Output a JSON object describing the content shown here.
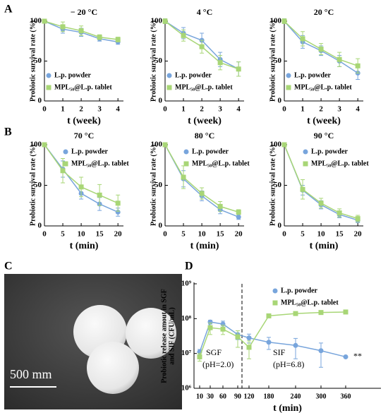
{
  "panel_labels": [
    "A",
    "B",
    "C",
    "D"
  ],
  "photo": {
    "scale_label": "500 mm"
  },
  "chart_data": [
    {
      "type": "line",
      "title": "− 20 °C",
      "x_label": "t (week)",
      "y_label": "Probiotic survival rate (%)",
      "x": [
        0,
        1,
        2,
        3,
        4
      ],
      "xlim": [
        0,
        4.3
      ],
      "xticks": [
        0,
        1,
        2,
        3,
        4
      ],
      "ylim": [
        0,
        100
      ],
      "yticks": [
        0,
        50,
        100
      ],
      "legend": "lower left",
      "series": [
        {
          "name": "L.p. powder",
          "color": "#78a5dc",
          "marker": "circle",
          "values": [
            100,
            90,
            86,
            78,
            74
          ],
          "errors": [
            2,
            5,
            5,
            3,
            3
          ]
        },
        {
          "name": "MPL₅₀@L.p. tablet",
          "color": "#a8d676",
          "marker": "square",
          "values": [
            100,
            93,
            88,
            80,
            77
          ],
          "errors": [
            2,
            6,
            6,
            3,
            3
          ]
        }
      ]
    },
    {
      "type": "line",
      "title": "4 °C",
      "x_label": "t (week)",
      "y_label": "Probiotic survival rate (%)",
      "x": [
        0,
        1,
        2,
        3,
        4
      ],
      "xlim": [
        0,
        4.3
      ],
      "xticks": [
        0,
        1,
        2,
        3,
        4
      ],
      "ylim": [
        0,
        100
      ],
      "yticks": [
        0,
        50,
        100
      ],
      "legend": "lower left",
      "series": [
        {
          "name": "L.p. powder",
          "color": "#78a5dc",
          "marker": "circle",
          "values": [
            100,
            85,
            76,
            52,
            40
          ],
          "errors": [
            3,
            7,
            9,
            9,
            9
          ]
        },
        {
          "name": "MPL₅₀@L.p. tablet",
          "color": "#a8d676",
          "marker": "square",
          "values": [
            100,
            82,
            68,
            48,
            40
          ],
          "errors": [
            3,
            7,
            8,
            9,
            9
          ]
        }
      ]
    },
    {
      "type": "line",
      "title": "20 °C",
      "x_label": "t (week)",
      "y_label": "Probiotic survival rate (%)",
      "x": [
        0,
        1,
        2,
        3,
        4
      ],
      "xlim": [
        0,
        4.3
      ],
      "xticks": [
        0,
        1,
        2,
        3,
        4
      ],
      "ylim": [
        0,
        100
      ],
      "yticks": [
        0,
        50,
        100
      ],
      "legend": "lower left",
      "series": [
        {
          "name": "L.p. powder",
          "color": "#78a5dc",
          "marker": "circle",
          "values": [
            100,
            74,
            63,
            50,
            35
          ],
          "errors": [
            3,
            8,
            6,
            7,
            8
          ]
        },
        {
          "name": "MPL₅₀@L.p. tablet",
          "color": "#a8d676",
          "marker": "square",
          "values": [
            100,
            78,
            65,
            52,
            44
          ],
          "errors": [
            3,
            9,
            7,
            9,
            9
          ]
        }
      ]
    },
    {
      "type": "line",
      "title": "70 °C",
      "x_label": "t (min)",
      "y_label": "Probiotic survival rate (%)",
      "x": [
        0,
        5,
        10,
        15,
        20
      ],
      "xlim": [
        0,
        21.5
      ],
      "xticks": [
        0,
        5,
        10,
        15,
        20
      ],
      "ylim": [
        0,
        100
      ],
      "yticks": [
        0,
        50,
        100
      ],
      "legend": "upper right",
      "series": [
        {
          "name": "L.p. powder",
          "color": "#78a5dc",
          "marker": "circle",
          "values": [
            100,
            70,
            40,
            27,
            17
          ],
          "errors": [
            2,
            10,
            7,
            8,
            5
          ]
        },
        {
          "name": "MPL₅₀@L.p. tablet",
          "color": "#a8d676",
          "marker": "square",
          "values": [
            100,
            68,
            48,
            38,
            28
          ],
          "errors": [
            2,
            15,
            12,
            13,
            10
          ]
        }
      ]
    },
    {
      "type": "line",
      "title": "80 °C",
      "x_label": "t (min)",
      "y_label": "Probiotic survival rate (%)",
      "x": [
        0,
        5,
        10,
        15,
        20
      ],
      "xlim": [
        0,
        21.5
      ],
      "xticks": [
        0,
        5,
        10,
        15,
        20
      ],
      "ylim": [
        0,
        100
      ],
      "yticks": [
        0,
        50,
        100
      ],
      "legend": "upper right",
      "series": [
        {
          "name": "L.p. powder",
          "color": "#78a5dc",
          "marker": "circle",
          "values": [
            100,
            58,
            37,
            20,
            11
          ],
          "errors": [
            2,
            10,
            6,
            5,
            3
          ]
        },
        {
          "name": "MPL₅₀@L.p. tablet",
          "color": "#a8d676",
          "marker": "square",
          "values": [
            100,
            60,
            40,
            24,
            17
          ],
          "errors": [
            2,
            14,
            7,
            6,
            3
          ]
        }
      ]
    },
    {
      "type": "line",
      "title": "90 °C",
      "x_label": "t (min)",
      "y_label": "Probiotic survival rate (%)",
      "x": [
        0,
        5,
        10,
        15,
        20
      ],
      "xlim": [
        0,
        21.5
      ],
      "xticks": [
        0,
        5,
        10,
        15,
        20
      ],
      "ylim": [
        0,
        100
      ],
      "yticks": [
        0,
        50,
        100
      ],
      "legend": "upper right",
      "series": [
        {
          "name": "L.p. powder",
          "color": "#78a5dc",
          "marker": "circle",
          "values": [
            100,
            44,
            26,
            14,
            7
          ],
          "errors": [
            2,
            6,
            5,
            4,
            3
          ]
        },
        {
          "name": "MPL₅₀@L.p. tablet",
          "color": "#a8d676",
          "marker": "square",
          "values": [
            100,
            45,
            28,
            16,
            9
          ],
          "errors": [
            2,
            12,
            6,
            5,
            4
          ]
        }
      ]
    },
    {
      "type": "line",
      "x_label": "t (min)",
      "y_label": [
        "Probiotic release amout in SGF",
        "and SIF (CFU/mL)"
      ],
      "categories": [
        "10",
        "30",
        "60",
        "90",
        "120",
        "180",
        "240",
        "300",
        "360"
      ],
      "log_y": true,
      "ylim": [
        1000000,
        1000000000
      ],
      "yticks": [
        {
          "value": 1000000,
          "label": "10⁶"
        },
        {
          "value": 10000000,
          "label": "10⁷"
        },
        {
          "value": 100000000,
          "label": "10⁸"
        },
        {
          "value": 1000000000,
          "label": "10⁹"
        }
      ],
      "legend": "upper right",
      "annotations": [
        "SGF",
        "(pH=2.0)",
        "SIF",
        "(pH=6.8)",
        "**"
      ],
      "series": [
        {
          "name": "L.p. powder",
          "color": "#78a5dc",
          "marker": "circle",
          "values": [
            11000000,
            80000000,
            70000000,
            35000000,
            28000000,
            21000000,
            17000000,
            12000000,
            8000000
          ],
          "errors": [
            2000000,
            10000000,
            15000000,
            10000000,
            8000000,
            8000000,
            10000000,
            8000000,
            10000000
          ]
        },
        {
          "name": "MPL₅₀@L.p. tablet",
          "color": "#a8d676",
          "marker": "square",
          "values": [
            8000000,
            55000000,
            50000000,
            30000000,
            15000000,
            120000000,
            140000000,
            150000000,
            155000000
          ],
          "errors": [
            2000000,
            20000000,
            15000000,
            15000000,
            8000000,
            10000000,
            10000000,
            10000000,
            10000000
          ]
        }
      ]
    }
  ]
}
